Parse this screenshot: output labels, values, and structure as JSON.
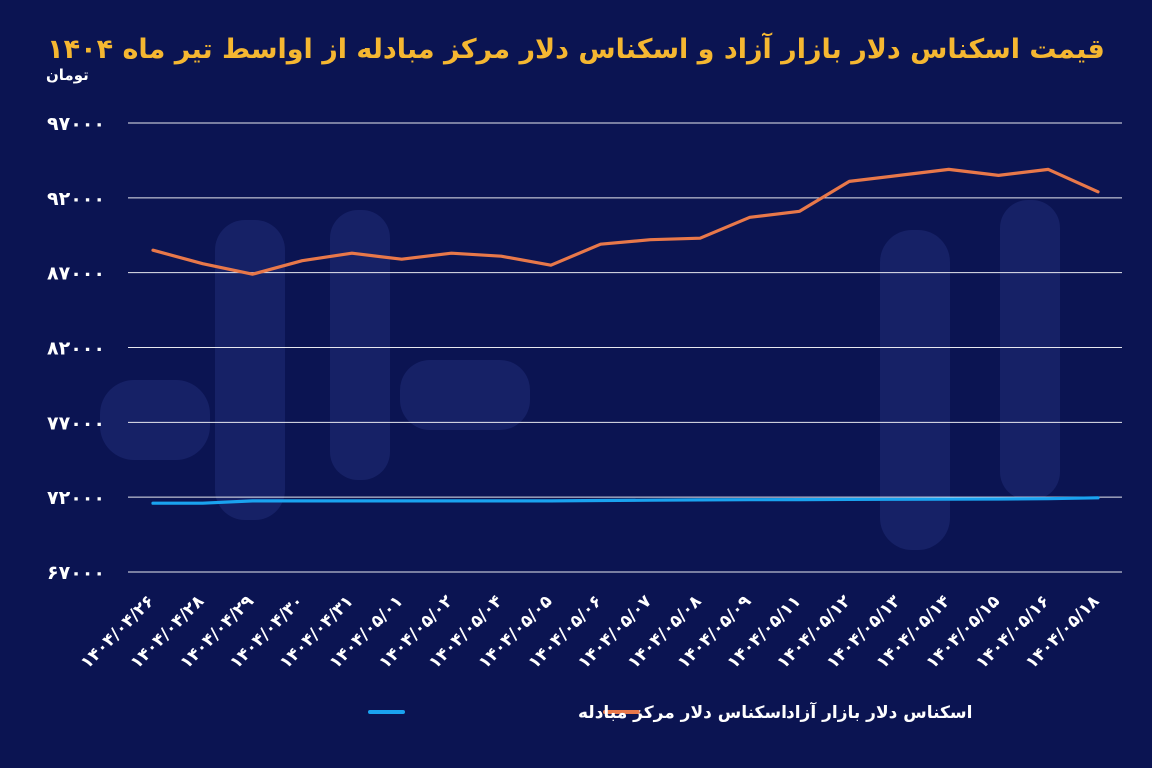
{
  "chart_data": {
    "type": "line",
    "title": "قیمت اسکناس دلار بازار آزاد و اسکناس دلار مرکز مبادله از اواسط تیر ماه ۱۴۰۴",
    "ylabel": "تومان",
    "xlabel": "",
    "ylim": [
      67000,
      97000
    ],
    "yticks": [
      97000,
      92000,
      87000,
      82000,
      77000,
      72000,
      67000
    ],
    "ytick_labels": [
      "۹۷۰۰۰",
      "۹۲۰۰۰",
      "۸۷۰۰۰",
      "۸۲۰۰۰",
      "۷۷۰۰۰",
      "۷۲۰۰۰",
      "۶۷۰۰۰"
    ],
    "grid": true,
    "legend_position": "bottom",
    "categories": [
      "۱۴۰۴/۰۴/۲۶",
      "۱۴۰۴/۰۴/۲۸",
      "۱۴۰۴/۰۴/۲۹",
      "۱۴۰۴/۰۴/۳۰",
      "۱۴۰۴/۰۴/۳۱",
      "۱۴۰۴/۰۵/۰۱",
      "۱۴۰۴/۰۵/۰۲",
      "۱۴۰۴/۰۵/۰۴",
      "۱۴۰۴/۰۵/۰۵",
      "۱۴۰۴/۰۵/۰۶",
      "۱۴۰۴/۰۵/۰۷",
      "۱۴۰۴/۰۵/۰۸",
      "۱۴۰۴/۰۵/۰۹",
      "۱۴۰۴/۰۵/۱۱",
      "۱۴۰۴/۰۵/۱۲",
      "۱۴۰۴/۰۵/۱۳",
      "۱۴۰۴/۰۵/۱۴",
      "۱۴۰۴/۰۵/۱۵",
      "۱۴۰۴/۰۵/۱۶",
      "۱۴۰۴/۰۵/۱۸"
    ],
    "series": [
      {
        "name": "اسکناس دلار مرکز مبادله",
        "color": "#1aa3f0",
        "values": [
          71600,
          71600,
          71750,
          71750,
          71750,
          71750,
          71750,
          71750,
          71750,
          71780,
          71800,
          71820,
          71830,
          71840,
          71850,
          71860,
          71870,
          71880,
          71900,
          71960
        ]
      },
      {
        "name": "اسکناس دلار بازار آزاد",
        "color": "#e8784a",
        "values": [
          88500,
          87600,
          86900,
          87800,
          88300,
          87900,
          88300,
          88100,
          87500,
          88900,
          89200,
          89300,
          90700,
          91100,
          93100,
          93500,
          93900,
          93500,
          93900,
          92400
        ]
      }
    ]
  }
}
